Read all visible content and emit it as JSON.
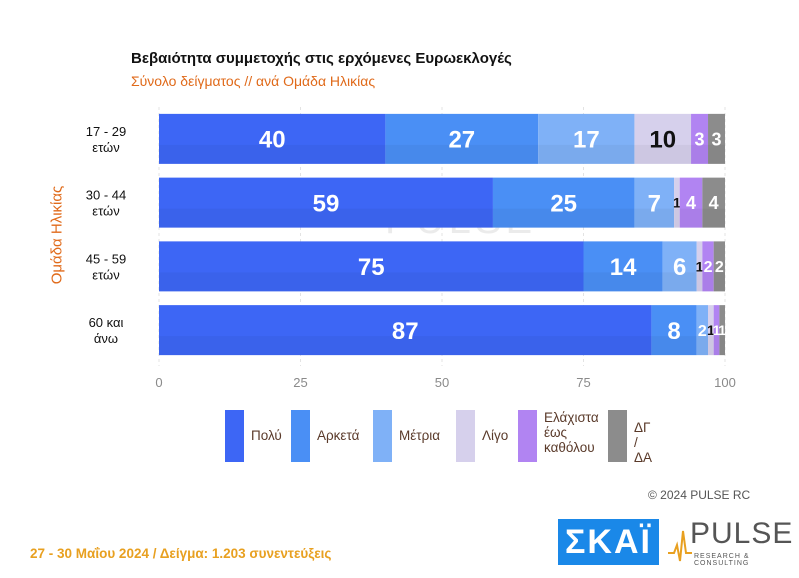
{
  "chart_data": {
    "type": "bar",
    "orientation": "horizontal",
    "stacked": true,
    "title": "Βεβαιότητα συμμετοχής στις ερχόμενες Ευρωεκλογές",
    "subtitle": "Σύνολο δείγματος // ανά Ομάδα Ηλικίας",
    "ylabel": "Ομάδα Ηλικίας",
    "xlim": [
      0,
      100
    ],
    "xticks": [
      "0",
      "25",
      "50",
      "75",
      "100"
    ],
    "categories": [
      [
        "17 - 29",
        "ετών"
      ],
      [
        "30 - 44",
        "ετών"
      ],
      [
        "45 - 59",
        "ετών"
      ],
      [
        "60 και",
        "άνω"
      ]
    ],
    "series": [
      {
        "name": "Πολύ",
        "color": "#3d66f5",
        "values": [
          40,
          59,
          75,
          87
        ]
      },
      {
        "name": "Αρκετά",
        "color": "#4a8ff5",
        "values": [
          27,
          25,
          14,
          8
        ]
      },
      {
        "name": "Μέτρια",
        "color": "#7fb1f7",
        "values": [
          17,
          7,
          6,
          2
        ]
      },
      {
        "name": "Λίγο",
        "color": "#d6d0ec",
        "values": [
          10,
          1,
          1,
          1
        ]
      },
      {
        "name": "Ελάχιστα έως καθόλου",
        "color": "#b184f2",
        "values": [
          3,
          4,
          2,
          1
        ]
      },
      {
        "name": "ΔΓ / ΔΑ",
        "color": "#8c8c8c",
        "values": [
          3,
          4,
          2,
          1
        ]
      }
    ],
    "legend": [
      {
        "label": [
          "Πολύ"
        ],
        "color": "#3d66f5"
      },
      {
        "label": [
          "Αρκετά"
        ],
        "color": "#4a8ff5"
      },
      {
        "label": [
          "Μέτρια"
        ],
        "color": "#7fb1f7"
      },
      {
        "label": [
          "Λίγο"
        ],
        "color": "#d6d0ec"
      },
      {
        "label": [
          "Ελάχιστα",
          "έως",
          "καθόλου"
        ],
        "color": "#b184f2"
      },
      {
        "label": [
          "ΔΓ /",
          "ΔΑ"
        ],
        "color": "#8c8c8c"
      }
    ]
  },
  "watermark": "PULSE",
  "copyright": "© 2024 PULSE RC",
  "footer": "27 - 30  Μαΐου 2024  /  Δείγμα:  1.203 συνεντεύξεις",
  "logos": {
    "skai": "ΣΚΑΪ",
    "pulse": "PULSE",
    "pulse_sub": "RESEARCH & CONSULTING"
  }
}
